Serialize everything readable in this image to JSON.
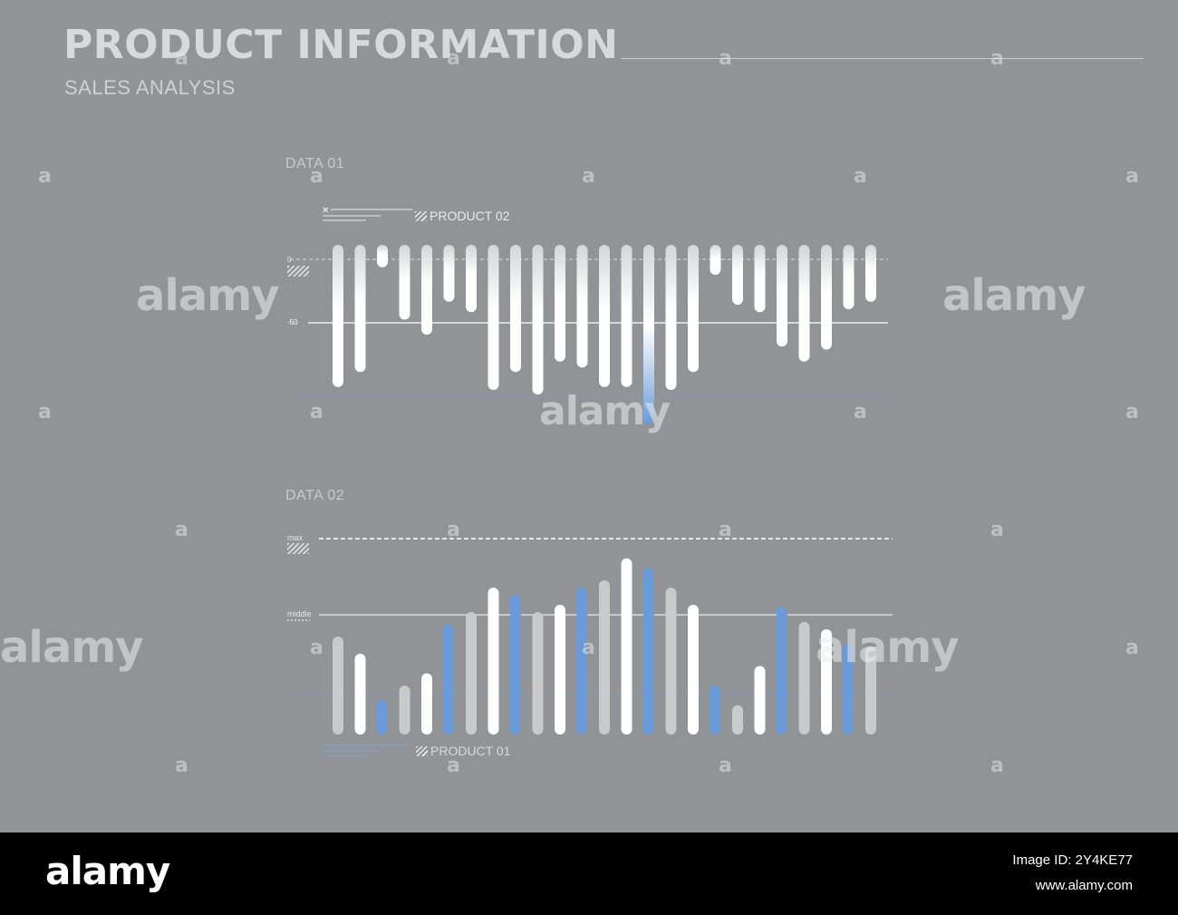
{
  "header": {
    "title": "PRODUCT INFORMATION",
    "subtitle": "SALES ANALYSIS"
  },
  "colors": {
    "background": "#929396",
    "bar_white": "#ffffff",
    "bar_grey": "#c9cacc",
    "bar_blue": "#6a9bd8",
    "text_light": "#d8d9db"
  },
  "chart_data": [
    {
      "type": "bar",
      "section_label": "DATA 01",
      "legend": "PRODUCT 02",
      "tick_labels": [
        "0",
        "-50"
      ],
      "values": [
        -95,
        -85,
        -15,
        -50,
        -60,
        -38,
        -45,
        -97,
        -85,
        -100,
        -78,
        -82,
        -95,
        -95,
        -120,
        -97,
        -85,
        -20,
        -40,
        -45,
        -68,
        -78,
        -70,
        -43,
        -38
      ],
      "highlight_index": 14,
      "bar_style": [
        "white",
        "white",
        "white",
        "white",
        "white",
        "white",
        "white",
        "white",
        "white",
        "white",
        "white",
        "white",
        "white",
        "white",
        "blue-gradient",
        "white",
        "white",
        "white",
        "white",
        "white",
        "white",
        "white",
        "white",
        "white",
        "white"
      ]
    },
    {
      "type": "bar",
      "section_label": "DATA 02",
      "legend": "PRODUCT 01",
      "tick_labels": [
        "max",
        "middle"
      ],
      "values": [
        40,
        33,
        14,
        20,
        25,
        45,
        50,
        60,
        57,
        50,
        53,
        60,
        63,
        72,
        68,
        60,
        53,
        20,
        12,
        28,
        52,
        46,
        43,
        37,
        36
      ],
      "bar_style": [
        "grey",
        "white",
        "blue",
        "grey",
        "white",
        "blue",
        "grey",
        "white",
        "blue",
        "grey",
        "white",
        "blue",
        "grey",
        "white",
        "blue",
        "grey",
        "white",
        "blue",
        "grey",
        "white",
        "blue",
        "grey",
        "white",
        "blue",
        "grey"
      ]
    }
  ],
  "watermark": {
    "brand": "alamy",
    "letter": "a"
  },
  "footer": {
    "logo": "alamy",
    "image_id": "Image ID: 2Y4KE77",
    "url": "www.alamy.com"
  }
}
